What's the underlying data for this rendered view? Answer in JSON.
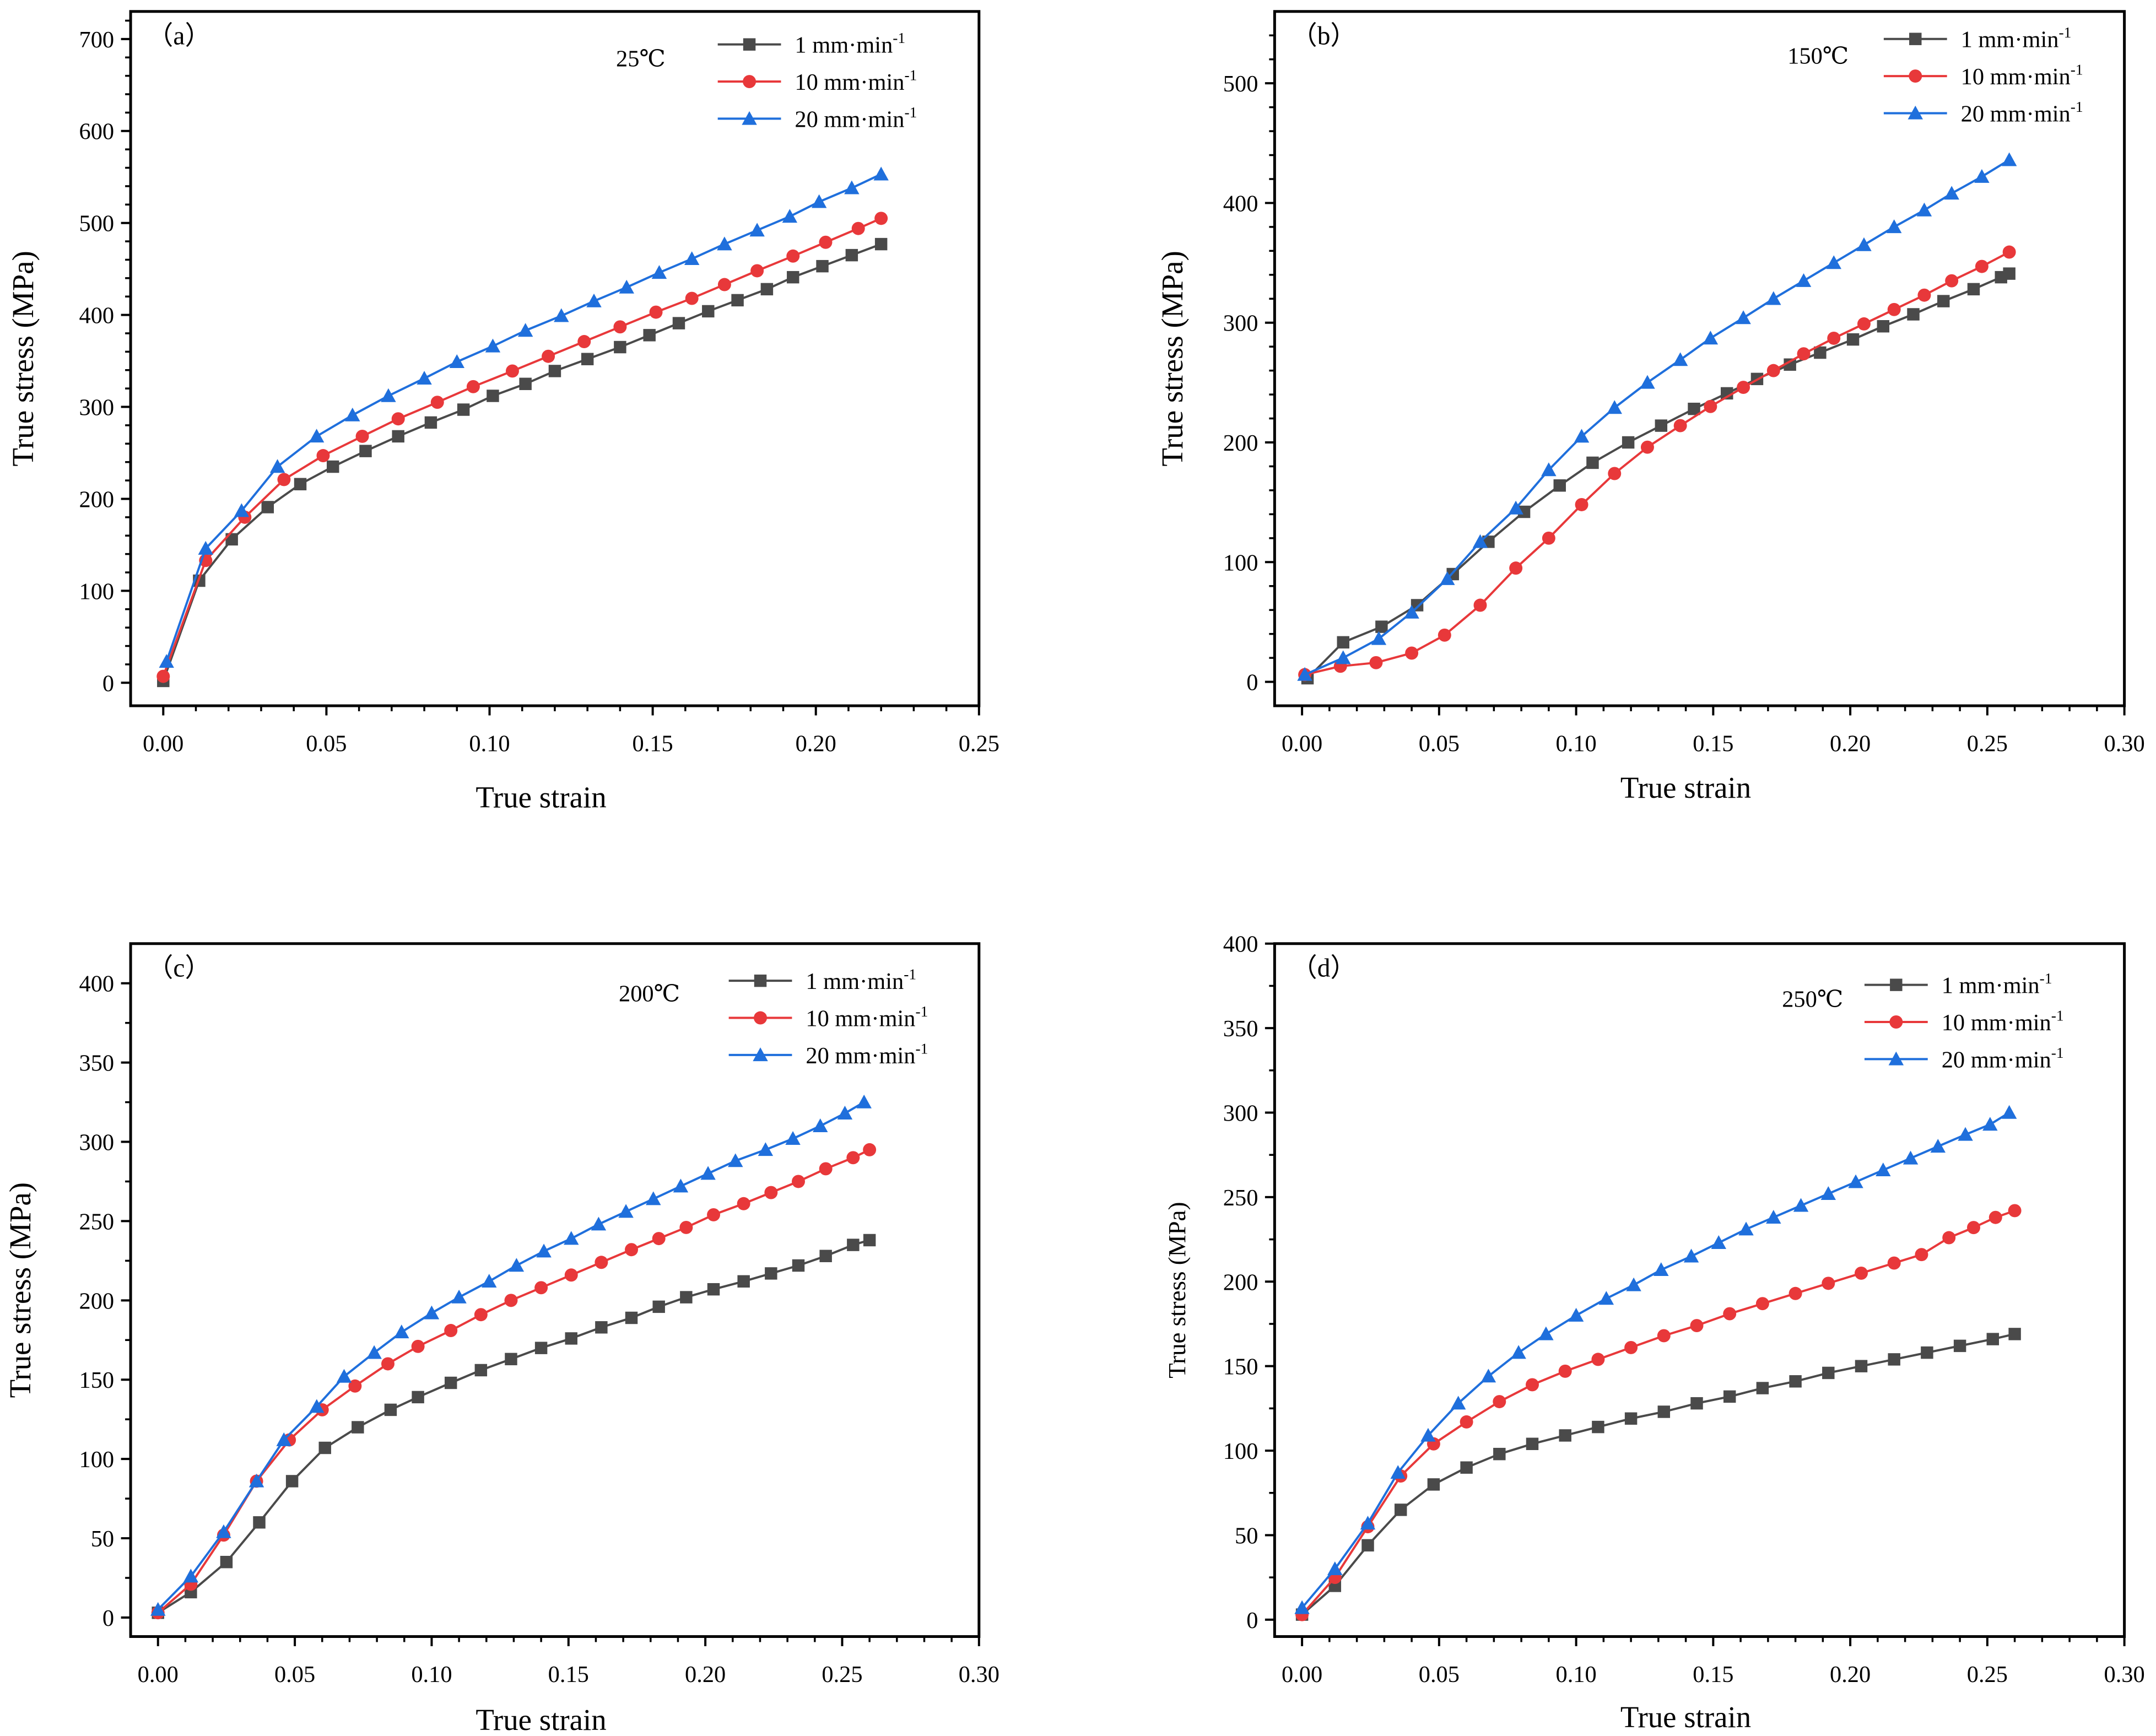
{
  "chart_data": [
    {
      "type": "line",
      "panel_label": "（a）",
      "annotation": "25℃",
      "xlabel": "True strain",
      "ylabel": "True stress (MPa)",
      "xlim": [
        -0.01,
        0.25
      ],
      "ylim": [
        -25,
        730
      ],
      "xticks": [
        "0.00",
        "0.05",
        "0.10",
        "0.15",
        "0.20",
        "0.25"
      ],
      "xtick_values": [
        0,
        0.05,
        0.1,
        0.15,
        0.2,
        0.25
      ],
      "yticks": [
        "0",
        "100",
        "200",
        "300",
        "400",
        "500",
        "600",
        "700"
      ],
      "ytick_values": [
        0,
        100,
        200,
        300,
        400,
        500,
        600,
        700
      ],
      "legend_position": "top-right",
      "series": [
        {
          "name": "1 mm·min",
          "sup": "-1",
          "color": "#4a4a4a",
          "marker": "square",
          "x": [
            0,
            0.011,
            0.021,
            0.032,
            0.042,
            0.052,
            0.062,
            0.072,
            0.082,
            0.092,
            0.101,
            0.111,
            0.12,
            0.13,
            0.14,
            0.149,
            0.158,
            0.167,
            0.176,
            0.185,
            0.193,
            0.202,
            0.211,
            0.22
          ],
          "y": [
            2,
            111,
            156,
            191,
            216,
            235,
            252,
            268,
            283,
            297,
            312,
            325,
            339,
            352,
            365,
            378,
            391,
            404,
            416,
            428,
            441,
            453,
            465,
            477
          ]
        },
        {
          "name": "10 mm·min",
          "sup": "-1",
          "color": "#e8383a",
          "marker": "circle",
          "x": [
            0,
            0.013,
            0.025,
            0.037,
            0.049,
            0.061,
            0.072,
            0.084,
            0.095,
            0.107,
            0.118,
            0.129,
            0.14,
            0.151,
            0.162,
            0.172,
            0.182,
            0.193,
            0.203,
            0.213,
            0.22
          ],
          "y": [
            7,
            133,
            180,
            221,
            247,
            268,
            287,
            305,
            322,
            339,
            355,
            371,
            387,
            403,
            418,
            433,
            448,
            464,
            479,
            494,
            505
          ]
        },
        {
          "name": "20 mm·min",
          "sup": "-1",
          "color": "#1f6fdc",
          "marker": "triangle",
          "x": [
            0.001,
            0.013,
            0.024,
            0.035,
            0.047,
            0.058,
            0.069,
            0.08,
            0.09,
            0.101,
            0.111,
            0.122,
            0.132,
            0.142,
            0.152,
            0.162,
            0.172,
            0.182,
            0.192,
            0.201,
            0.211,
            0.22
          ],
          "y": [
            23,
            146,
            187,
            235,
            268,
            291,
            312,
            331,
            349,
            366,
            383,
            399,
            415,
            430,
            446,
            461,
            477,
            492,
            507,
            523,
            538,
            553
          ]
        }
      ]
    },
    {
      "type": "line",
      "panel_label": "（b）",
      "annotation": "150℃",
      "xlabel": "True strain",
      "ylabel": "True stress (MPa)",
      "xlim": [
        -0.01,
        0.3
      ],
      "ylim": [
        -20,
        560
      ],
      "xticks": [
        "0.00",
        "0.05",
        "0.10",
        "0.15",
        "0.20",
        "0.25",
        "0.30"
      ],
      "xtick_values": [
        0,
        0.05,
        0.1,
        0.15,
        0.2,
        0.25,
        0.3
      ],
      "yticks": [
        "0",
        "100",
        "200",
        "300",
        "400",
        "500"
      ],
      "ytick_values": [
        0,
        100,
        200,
        300,
        400,
        500
      ],
      "legend_position": "top-right",
      "series": [
        {
          "name": "1 mm·min",
          "sup": "-1",
          "color": "#4a4a4a",
          "marker": "square",
          "x": [
            0.002,
            0.015,
            0.029,
            0.042,
            0.055,
            0.068,
            0.081,
            0.094,
            0.106,
            0.119,
            0.131,
            0.143,
            0.155,
            0.166,
            0.178,
            0.189,
            0.201,
            0.212,
            0.223,
            0.234,
            0.245,
            0.255,
            0.258
          ],
          "y": [
            3,
            33,
            46,
            64,
            90,
            117,
            142,
            164,
            183,
            200,
            214,
            228,
            241,
            253,
            265,
            275,
            286,
            297,
            307,
            318,
            328,
            338,
            341
          ]
        },
        {
          "name": "10 mm·min",
          "sup": "-1",
          "color": "#e8383a",
          "marker": "circle",
          "x": [
            0.001,
            0.014,
            0.027,
            0.04,
            0.052,
            0.065,
            0.078,
            0.09,
            0.102,
            0.114,
            0.126,
            0.138,
            0.149,
            0.161,
            0.172,
            0.183,
            0.194,
            0.205,
            0.216,
            0.227,
            0.237,
            0.248,
            0.258
          ],
          "y": [
            6,
            13,
            16,
            24,
            39,
            64,
            95,
            120,
            148,
            174,
            196,
            214,
            230,
            246,
            260,
            274,
            287,
            299,
            311,
            323,
            335,
            347,
            359
          ]
        },
        {
          "name": "20 mm·min",
          "sup": "-1",
          "color": "#1f6fdc",
          "marker": "triangle",
          "x": [
            0.001,
            0.015,
            0.028,
            0.04,
            0.053,
            0.065,
            0.078,
            0.09,
            0.102,
            0.114,
            0.126,
            0.138,
            0.149,
            0.161,
            0.172,
            0.183,
            0.194,
            0.205,
            0.216,
            0.227,
            0.237,
            0.248,
            0.258
          ],
          "y": [
            6,
            20,
            36,
            58,
            86,
            117,
            145,
            177,
            205,
            229,
            250,
            269,
            287,
            304,
            320,
            335,
            350,
            365,
            380,
            394,
            408,
            422,
            436
          ]
        }
      ]
    },
    {
      "type": "line",
      "panel_label": "（c）",
      "annotation": "200℃",
      "xlabel": "True strain",
      "ylabel": "True stress (MPa)",
      "xlim": [
        -0.01,
        0.3
      ],
      "ylim": [
        -12,
        425
      ],
      "xticks": [
        "0.00",
        "0.05",
        "0.10",
        "0.15",
        "0.20",
        "0.25",
        "0.30"
      ],
      "xtick_values": [
        0,
        0.05,
        0.1,
        0.15,
        0.2,
        0.25,
        0.3
      ],
      "yticks": [
        "0",
        "50",
        "100",
        "150",
        "200",
        "250",
        "300",
        "350",
        "400"
      ],
      "ytick_values": [
        0,
        50,
        100,
        150,
        200,
        250,
        300,
        350,
        400
      ],
      "legend_position": "top-right",
      "series": [
        {
          "name": "1 mm·min",
          "sup": "-1",
          "color": "#4a4a4a",
          "marker": "square",
          "x": [
            0,
            0.012,
            0.025,
            0.037,
            0.049,
            0.061,
            0.073,
            0.085,
            0.095,
            0.107,
            0.118,
            0.129,
            0.14,
            0.151,
            0.162,
            0.173,
            0.183,
            0.193,
            0.203,
            0.214,
            0.224,
            0.234,
            0.244,
            0.254,
            0.26
          ],
          "y": [
            3,
            16,
            35,
            60,
            86,
            107,
            120,
            131,
            139,
            148,
            156,
            163,
            170,
            176,
            183,
            189,
            196,
            202,
            207,
            212,
            217,
            222,
            228,
            235,
            238
          ]
        },
        {
          "name": "10 mm·min",
          "sup": "-1",
          "color": "#e8383a",
          "marker": "circle",
          "x": [
            0,
            0.012,
            0.024,
            0.036,
            0.048,
            0.06,
            0.072,
            0.084,
            0.095,
            0.107,
            0.118,
            0.129,
            0.14,
            0.151,
            0.162,
            0.173,
            0.183,
            0.193,
            0.203,
            0.214,
            0.224,
            0.234,
            0.244,
            0.254,
            0.26
          ],
          "y": [
            3,
            21,
            52,
            86,
            112,
            131,
            146,
            160,
            171,
            181,
            191,
            200,
            208,
            216,
            224,
            232,
            239,
            246,
            254,
            261,
            268,
            275,
            283,
            290,
            295
          ]
        },
        {
          "name": "20 mm·min",
          "sup": "-1",
          "color": "#1f6fdc",
          "marker": "triangle",
          "x": [
            0,
            0.012,
            0.024,
            0.036,
            0.046,
            0.058,
            0.068,
            0.079,
            0.089,
            0.1,
            0.11,
            0.121,
            0.131,
            0.141,
            0.151,
            0.161,
            0.171,
            0.181,
            0.191,
            0.201,
            0.211,
            0.222,
            0.232,
            0.242,
            0.251,
            0.258
          ],
          "y": [
            5,
            26,
            54,
            86,
            112,
            133,
            152,
            167,
            180,
            192,
            202,
            212,
            222,
            231,
            239,
            248,
            256,
            264,
            272,
            280,
            288,
            295,
            302,
            310,
            318,
            325
          ]
        }
      ]
    },
    {
      "type": "line",
      "panel_label": "（d）",
      "annotation": "250℃",
      "xlabel": "True strain",
      "ylabel": "True stress (MPa)",
      "xlim": [
        -0.01,
        0.3
      ],
      "ylim": [
        -10,
        400
      ],
      "xticks": [
        "0.00",
        "0.05",
        "0.10",
        "0.15",
        "0.20",
        "0.25",
        "0.30"
      ],
      "xtick_values": [
        0,
        0.05,
        0.1,
        0.15,
        0.2,
        0.25,
        0.3
      ],
      "yticks": [
        "0",
        "50",
        "100",
        "150",
        "200",
        "250",
        "300",
        "350",
        "400"
      ],
      "ytick_values": [
        0,
        50,
        100,
        150,
        200,
        250,
        300,
        350,
        400
      ],
      "legend_position": "top-right",
      "series": [
        {
          "name": "1 mm·min",
          "sup": "-1",
          "color": "#4a4a4a",
          "marker": "square",
          "x": [
            0,
            0.012,
            0.024,
            0.036,
            0.048,
            0.06,
            0.072,
            0.084,
            0.096,
            0.108,
            0.12,
            0.132,
            0.144,
            0.156,
            0.168,
            0.18,
            0.192,
            0.204,
            0.216,
            0.228,
            0.24,
            0.252,
            0.26
          ],
          "y": [
            3,
            20,
            44,
            65,
            80,
            90,
            98,
            104,
            109,
            114,
            119,
            123,
            128,
            132,
            137,
            141,
            146,
            150,
            154,
            158,
            162,
            166,
            169
          ]
        },
        {
          "name": "10 mm·min",
          "sup": "-1",
          "color": "#e8383a",
          "marker": "circle",
          "x": [
            0,
            0.012,
            0.024,
            0.036,
            0.048,
            0.06,
            0.072,
            0.084,
            0.096,
            0.108,
            0.12,
            0.132,
            0.144,
            0.156,
            0.168,
            0.18,
            0.192,
            0.204,
            0.216,
            0.226,
            0.236,
            0.245,
            0.253,
            0.26
          ],
          "y": [
            3,
            25,
            55,
            85,
            104,
            117,
            129,
            139,
            147,
            154,
            161,
            168,
            174,
            181,
            187,
            193,
            199,
            205,
            211,
            216,
            226,
            232,
            238,
            242
          ]
        },
        {
          "name": "20 mm·min",
          "sup": "-1",
          "color": "#1f6fdc",
          "marker": "triangle",
          "x": [
            0,
            0.012,
            0.024,
            0.035,
            0.046,
            0.057,
            0.068,
            0.079,
            0.089,
            0.1,
            0.111,
            0.121,
            0.131,
            0.142,
            0.152,
            0.162,
            0.172,
            0.182,
            0.192,
            0.202,
            0.212,
            0.222,
            0.232,
            0.242,
            0.251,
            0.258
          ],
          "y": [
            7,
            30,
            57,
            87,
            109,
            128,
            144,
            158,
            169,
            180,
            190,
            198,
            207,
            215,
            223,
            231,
            238,
            245,
            252,
            259,
            266,
            273,
            280,
            287,
            293,
            300
          ]
        }
      ]
    }
  ]
}
